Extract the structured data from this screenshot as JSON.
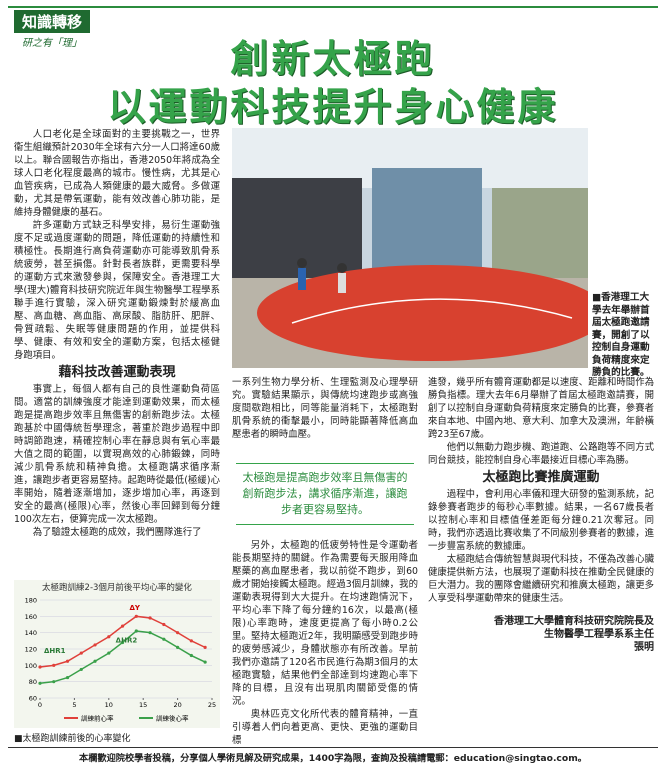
{
  "header": {
    "section": "知識轉移",
    "column": "研之有「理」",
    "title_line1": "創新太極跑",
    "title_line2": "以運動科技提升身心健康"
  },
  "left": {
    "paragraphs": [
      "人口老化是全球面對的主要挑戰之一，世界衞生組織預計2030年全球有六分一人口將達60歲以上。聯合國報告亦指出，香港2050年將成為全球人口老化程度最高的城市。慢性病，尤其是心血管疾病，已成為人類健康的最大威脅。多做運動，尤其是帶氧運動，能有效改善心肺功能，是維持身體健康的基石。",
      "許多運動方式缺乏科學安排，易衍生運動強度不足或過度運動的問題，降低運動的持續性和積極性。長期進行高負荷運動亦可能導致肌骨系統疲勞，甚至損傷。針對長者族群，更需要科學的運動方式來激發參與，保障安全。香港理工大學(理大)體育科技研究院近年與生物醫學工程學系聯手進行實驗，深入研究運動鍛煉對於緩高血壓、高血糖、高血脂、高尿酸、脂肪肝、肥胖、骨質疏鬆、失眠等健康問題的作用，並提供科學、健康、有效和安全的運動方案，包括太極健身跑項目。"
    ],
    "heading": "藉科技改善運動表現",
    "paragraphs2": [
      "事實上，每個人都有自己的良性運動負荷區間。適當的訓練強度才能達到運動效果，而太極跑是提高跑步效率且無傷害的創新跑步法。太極跑基於中國傳統哲學理念，著重於跑步過程中即時調節跑速，精確控制心率在靜息與有氧心率最大值之間的範圍，以實現高效的心肺鍛鍊，同時減少肌骨系統和精神負擔。太極跑講求循序漸進，讓跑步者更容易堅持。起跑時從最低(極緩)心率開始，隨着逐漸增加，逐步增加心率，再逐到安全的最高(極限)心率，然後心率回歸到每分鐘100次左右，便算完成一次太極跑。",
      "為了驗證太極跑的成效，我們團隊進行了"
    ]
  },
  "photo": {
    "caption": "■香港理工大學去年舉辦首屆太極跑邀請賽，開創了以控制自身運動負荷精度來定勝負的比賽。"
  },
  "middle": {
    "paragraphs": [
      "一系列生物力學分析、生理監測及心理學研究。實驗結果顯示，與傳統均速跑步或高強度間歇跑相比，同等能量消耗下，太極跑對肌骨系統的衝擊最小，同時能顯著降低高血壓患者的瞬時血壓。"
    ],
    "quote": "太極跑是提高跑步效率且無傷害的創新跑步法，講求循序漸進，讓跑步者更容易堅持。",
    "paragraphs2": [
      "另外，太極跑的低疲勞特性是令運動者能長期堅持的關鍵。作為需要每天服用降血壓藥的高血壓患者，我以前從不跑步，到60歲才開始接觸太極跑。經過3個月訓練，我的運動表現得到大大提升。在均速跑情況下，平均心率下降了每分鐘約16次，以最高(極限)心率跑時，速度更提高了每小時0.2公里。堅持太極跑近2年，我明顯感受到跑步時的疲勞感減少，身體狀態亦有所改善。早前我們亦邀請了120名市民進行為期3個月的太極跑實驗，結果他們全部達到均速跑心率下降的目標，且沒有出現肌肉關節受傷的情況。",
      "奧林匹克文化所代表的體育精神，一直引導着人們向着更高、更快、更強的運動目標"
    ]
  },
  "right": {
    "paragraphs": [
      "進發，幾乎所有體育運動都是以速度、距離和時間作為勝負指標。理大去年6月舉辦了首屆太極跑邀請賽，開創了以控制自身運動負荷精度來定勝負的比賽，參賽者來自本地、中國內地、意大利、加拿大及澳洲，年齡橫跨23至67歲。",
      "他們以無動力跑步機、跑道跑、公路跑等不同方式同台競技，能控制自身心率最接近目標心率為勝。"
    ],
    "heading": "太極跑比賽推廣運動",
    "paragraphs2": [
      "過程中，會利用心率儀和理大研發的監測系統，記錄參賽者跑步的每秒心率數據。結果，一名67歲長者以控制心率和目標值僅差距每分鐘0.21次奪冠。同時，我們亦透過比賽收集了不同級別參賽者的數據，進一步豐富系統的數據庫。",
      "太極跑結合傳統智慧與現代科技，不僅為改善心臟健康提供新方法，也展現了運動科技在推動全民健康的巨大潛力。我的團隊會繼續研究和推廣太極跑，讓更多人享受科學運動帶來的健康生活。"
    ],
    "signature": [
      "香港理工大學體育科技研究院院長及",
      "生物醫學工程學系系主任",
      "張明"
    ]
  },
  "chart_data": {
    "type": "line",
    "title": "太極跑訓練2-3個月前後平均心率的變化",
    "caption": "■太極跑訓練前後的心率變化",
    "x": [
      0,
      2,
      4,
      6,
      8,
      10,
      12,
      14,
      16,
      18,
      20,
      22,
      24
    ],
    "series": [
      {
        "name": "訓練前心率",
        "color": "#e0403a",
        "values": [
          98,
          100,
          105,
          115,
          125,
          135,
          148,
          160,
          158,
          150,
          140,
          130,
          122
        ]
      },
      {
        "name": "訓練後心率",
        "color": "#3aa04a",
        "values": [
          78,
          80,
          85,
          95,
          105,
          115,
          128,
          142,
          140,
          132,
          122,
          112,
          104
        ]
      }
    ],
    "annotations": [
      "ΔHR1",
      "ΔHR2",
      "ΔY"
    ],
    "xlim": [
      0,
      25
    ],
    "xticks": [
      0,
      5,
      10,
      15,
      20,
      25
    ],
    "ylim": [
      60,
      180
    ],
    "yticks": [
      60,
      80,
      100,
      120,
      140,
      160,
      180
    ]
  },
  "footer": {
    "text": "本欄歡迎院校學者投稿，分享個人學術見解及研究成果，1400字為限，查詢及投稿請電郵：education@singtao.com。"
  }
}
